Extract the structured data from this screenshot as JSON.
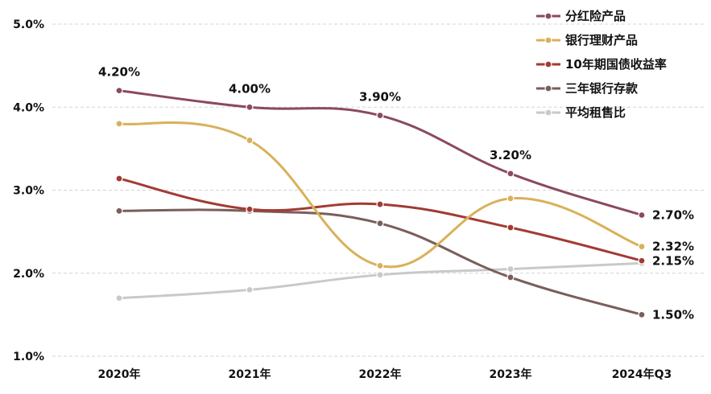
{
  "chart_data": {
    "type": "line",
    "categories": [
      "2020年",
      "2021年",
      "2022年",
      "2023年",
      "2024年Q3"
    ],
    "ylim": [
      1.0,
      5.0
    ],
    "yticks": [
      "1.0%",
      "2.0%",
      "3.0%",
      "4.0%",
      "5.0%"
    ],
    "grid": true,
    "legend_position": "top-right",
    "series": [
      {
        "name": "分红险产品",
        "color": "#8b4a5c",
        "values": [
          4.2,
          4.0,
          3.9,
          3.2,
          2.7
        ],
        "labels": [
          "4.20%",
          "4.00%",
          "3.90%",
          "3.20%",
          "2.70%"
        ]
      },
      {
        "name": "银行理财产品",
        "color": "#d9b15a",
        "values": [
          3.8,
          3.6,
          2.09,
          2.9,
          2.32
        ],
        "labels": [
          "",
          "",
          "",
          "",
          "2.32%"
        ]
      },
      {
        "name": "10年期国债收益率",
        "color": "#a33a33",
        "values": [
          3.14,
          2.77,
          2.83,
          2.55,
          2.15
        ],
        "labels": [
          "",
          "",
          "",
          "",
          "2.15%"
        ]
      },
      {
        "name": "三年银行存款",
        "color": "#7a5e5a",
        "values": [
          2.75,
          2.75,
          2.6,
          1.95,
          1.5
        ],
        "labels": [
          "",
          "",
          "",
          "",
          "1.50%"
        ]
      },
      {
        "name": "平均租售比",
        "color": "#c9c9c9",
        "values": [
          1.7,
          1.8,
          1.98,
          2.05,
          2.12
        ],
        "labels": [
          "",
          "",
          "",
          "",
          ""
        ]
      }
    ]
  }
}
